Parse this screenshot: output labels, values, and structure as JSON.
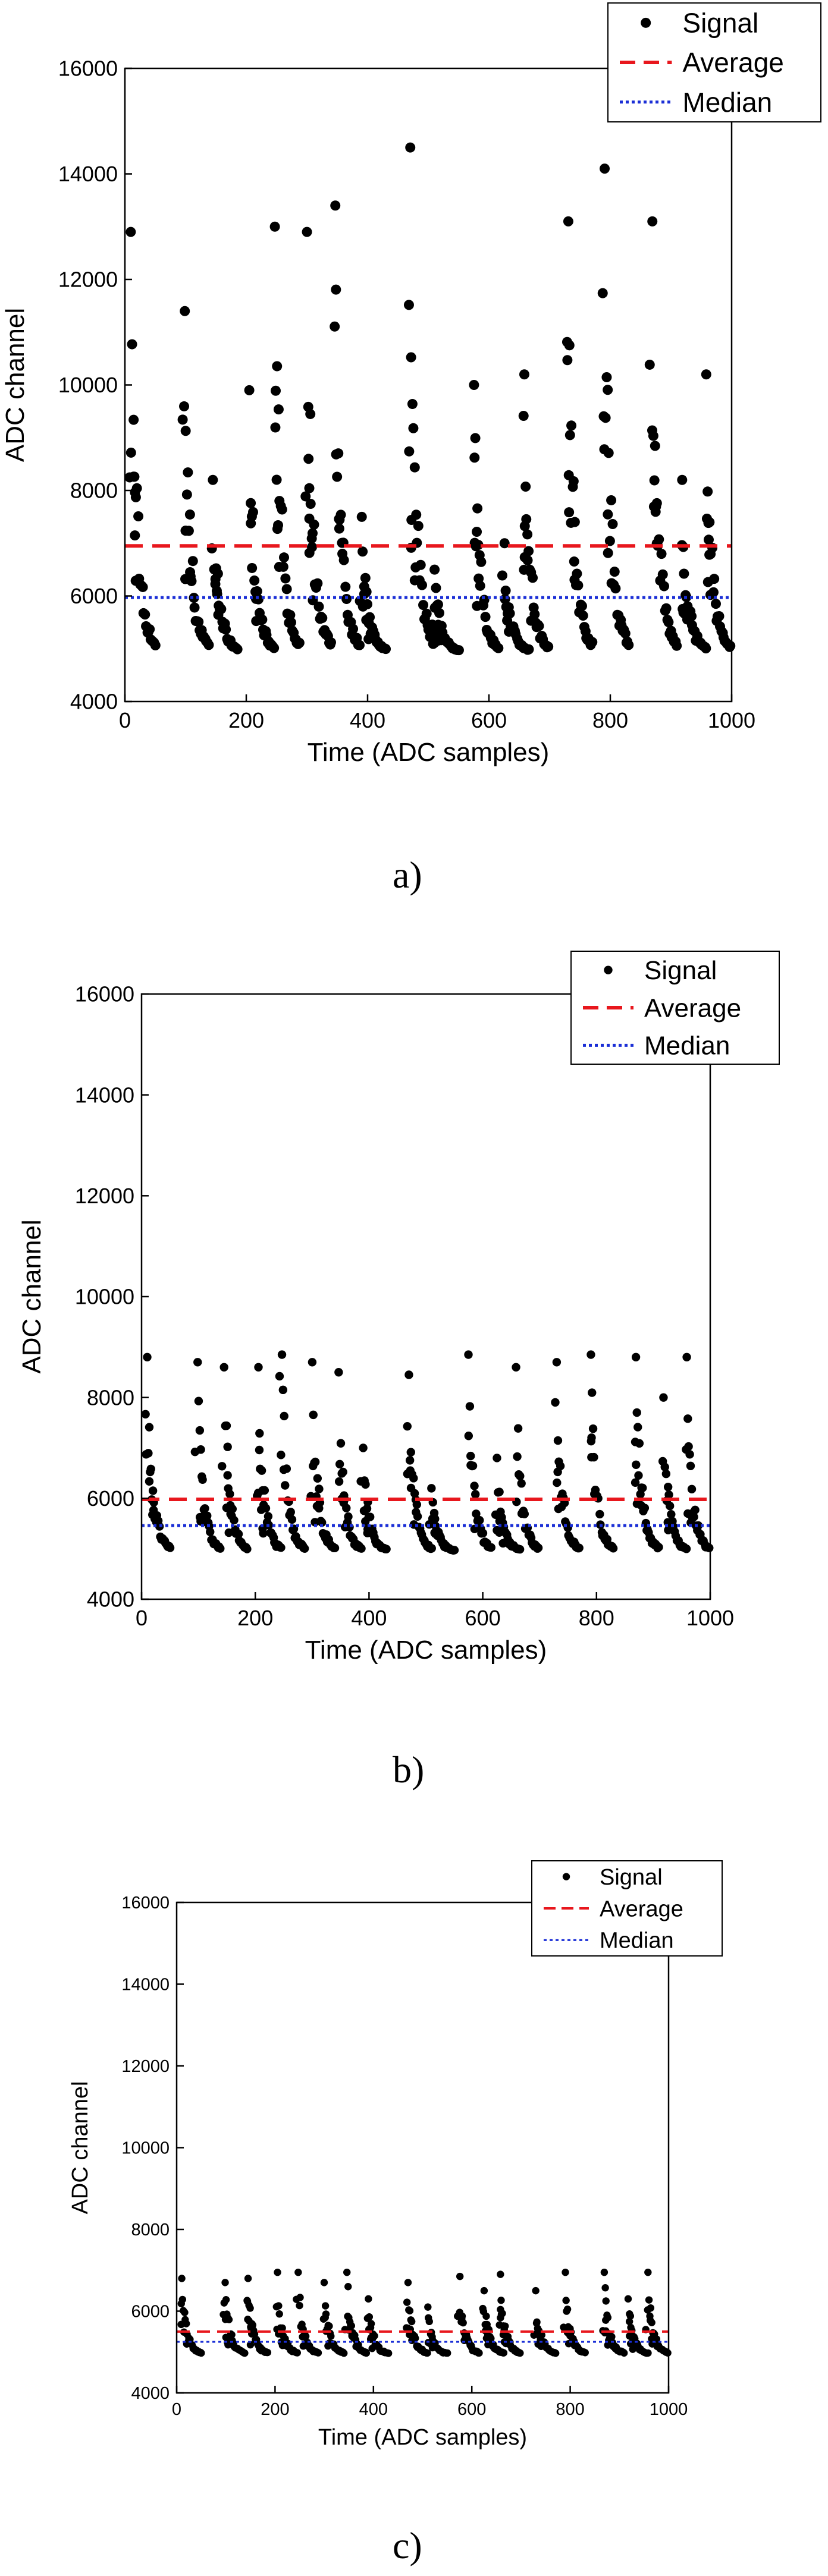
{
  "chart_data": [
    {
      "type": "scatter",
      "caption": "a)",
      "xlabel": "Time (ADC samples)",
      "ylabel": "ADC channel",
      "xlim": [
        0,
        1000
      ],
      "ylim": [
        4000,
        16000
      ],
      "xticks": [
        0,
        200,
        400,
        600,
        800,
        1000
      ],
      "yticks": [
        4000,
        6000,
        8000,
        10000,
        12000,
        14000,
        16000
      ],
      "legend_position": "top-right",
      "legend": [
        "Signal",
        "Average",
        "Median"
      ],
      "series": [
        {
          "name": "Signal",
          "marker": "dot",
          "color": "#000000",
          "pulses": [
            [
              10,
              12900
            ],
            [
              98,
              11400
            ],
            [
              145,
              8200
            ],
            [
              205,
              9900
            ],
            [
              247,
              13000
            ],
            [
              300,
              12900
            ],
            [
              346,
              13400
            ],
            [
              390,
              7500
            ],
            [
              470,
              14500
            ],
            [
              510,
              6500
            ],
            [
              575,
              10000
            ],
            [
              625,
              7000
            ],
            [
              658,
              10200
            ],
            [
              730,
              13100
            ],
            [
              790,
              14100
            ],
            [
              869,
              13100
            ],
            [
              918,
              8200
            ],
            [
              958,
              10200
            ]
          ]
        },
        {
          "name": "Average",
          "line": "dashed",
          "color": "#e8171d",
          "value": 6950
        },
        {
          "name": "Median",
          "line": "dotted",
          "color": "#1b2fd6",
          "value": 5970
        }
      ]
    },
    {
      "type": "scatter",
      "caption": "b)",
      "xlabel": "Time (ADC samples)",
      "ylabel": "ADC channel",
      "xlim": [
        0,
        1000
      ],
      "ylim": [
        4000,
        16000
      ],
      "xticks": [
        0,
        200,
        400,
        600,
        800,
        1000
      ],
      "yticks": [
        4000,
        6000,
        8000,
        10000,
        12000,
        14000,
        16000
      ],
      "legend_position": "top-right",
      "legend": [
        "Signal",
        "Average",
        "Median"
      ],
      "series": [
        {
          "name": "Signal",
          "marker": "dot",
          "color": "#000000",
          "pulses": [
            [
              10,
              8800
            ],
            [
              98,
              8700
            ],
            [
              145,
              8600
            ],
            [
              205,
              8600
            ],
            [
              247,
              8850
            ],
            [
              300,
              8700
            ],
            [
              346,
              8500
            ],
            [
              390,
              7000
            ],
            [
              470,
              8450
            ],
            [
              510,
              6200
            ],
            [
              575,
              8850
            ],
            [
              625,
              6800
            ],
            [
              658,
              8600
            ],
            [
              730,
              8700
            ],
            [
              790,
              8850
            ],
            [
              869,
              8800
            ],
            [
              918,
              8000
            ],
            [
              958,
              8800
            ]
          ]
        },
        {
          "name": "Average",
          "line": "dashed",
          "color": "#e8171d",
          "value": 5980
        },
        {
          "name": "Median",
          "line": "dotted",
          "color": "#1b2fd6",
          "value": 5460
        }
      ]
    },
    {
      "type": "scatter",
      "caption": "c)",
      "xlabel": "Time (ADC samples)",
      "ylabel": "ADC channel",
      "xlim": [
        0,
        1000
      ],
      "ylim": [
        4000,
        16000
      ],
      "xticks": [
        0,
        200,
        400,
        600,
        800,
        1000
      ],
      "yticks": [
        4000,
        6000,
        8000,
        10000,
        12000,
        14000,
        16000
      ],
      "legend_position": "top-right",
      "legend": [
        "Signal",
        "Average",
        "Median"
      ],
      "series": [
        {
          "name": "Signal",
          "marker": "dot",
          "color": "#000000",
          "pulses": [
            [
              10,
              6800
            ],
            [
              98,
              6700
            ],
            [
              145,
              6800
            ],
            [
              205,
              6950
            ],
            [
              247,
              6950
            ],
            [
              300,
              6700
            ],
            [
              346,
              6950
            ],
            [
              390,
              6300
            ],
            [
              470,
              6700
            ],
            [
              510,
              6100
            ],
            [
              575,
              6850
            ],
            [
              625,
              6500
            ],
            [
              658,
              6900
            ],
            [
              730,
              6500
            ],
            [
              790,
              6950
            ],
            [
              869,
              6950
            ],
            [
              918,
              6300
            ],
            [
              958,
              6950
            ]
          ]
        },
        {
          "name": "Average",
          "line": "dashed",
          "color": "#e8171d",
          "value": 5500
        },
        {
          "name": "Median",
          "line": "dotted",
          "color": "#1b2fd6",
          "value": 5250
        }
      ]
    }
  ]
}
